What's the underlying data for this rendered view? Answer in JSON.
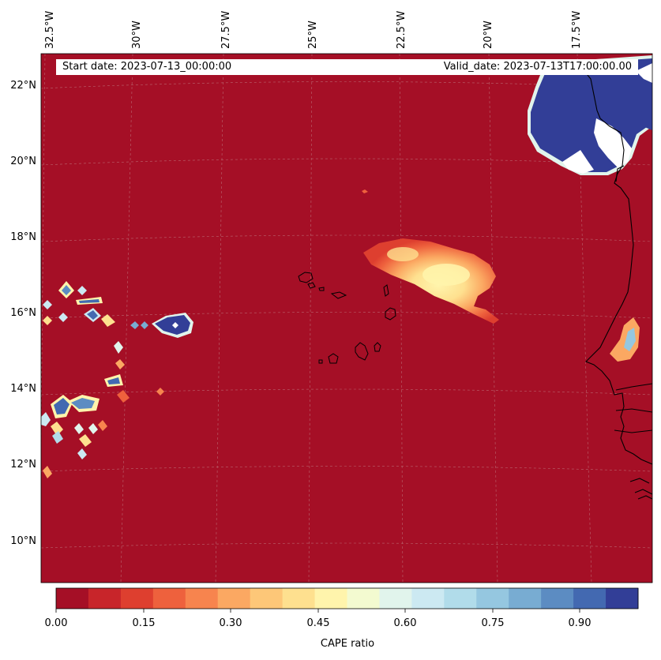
{
  "map": {
    "start_date_label": "Start date: 2023-07-13_00:00:00",
    "valid_date_label": "Valid_date: 2023-07-13T17:00:00.00",
    "lon_ticks": [
      "32.5°W",
      "30°W",
      "27.5°W",
      "25°W",
      "22.5°W",
      "20°W",
      "17.5°W"
    ],
    "lat_ticks": [
      "22°N",
      "20°N",
      "18°N",
      "16°N",
      "14°N",
      "12°N",
      "10°N"
    ],
    "colorbar": {
      "label": "CAPE ratio",
      "tick_labels": [
        "0.00",
        "0.15",
        "0.30",
        "0.45",
        "0.60",
        "0.75",
        "0.90"
      ],
      "colors": [
        "#a50f26",
        "#c8252a",
        "#de3f2f",
        "#ee613d",
        "#f7844e",
        "#fba862",
        "#fdc778",
        "#fee08f",
        "#fff4ac",
        "#f3fad0",
        "#e1f4ec",
        "#cce9f2",
        "#b1dcea",
        "#95c7e0",
        "#78acd2",
        "#5c8cc2",
        "#4369b1",
        "#323e97"
      ]
    }
  }
}
